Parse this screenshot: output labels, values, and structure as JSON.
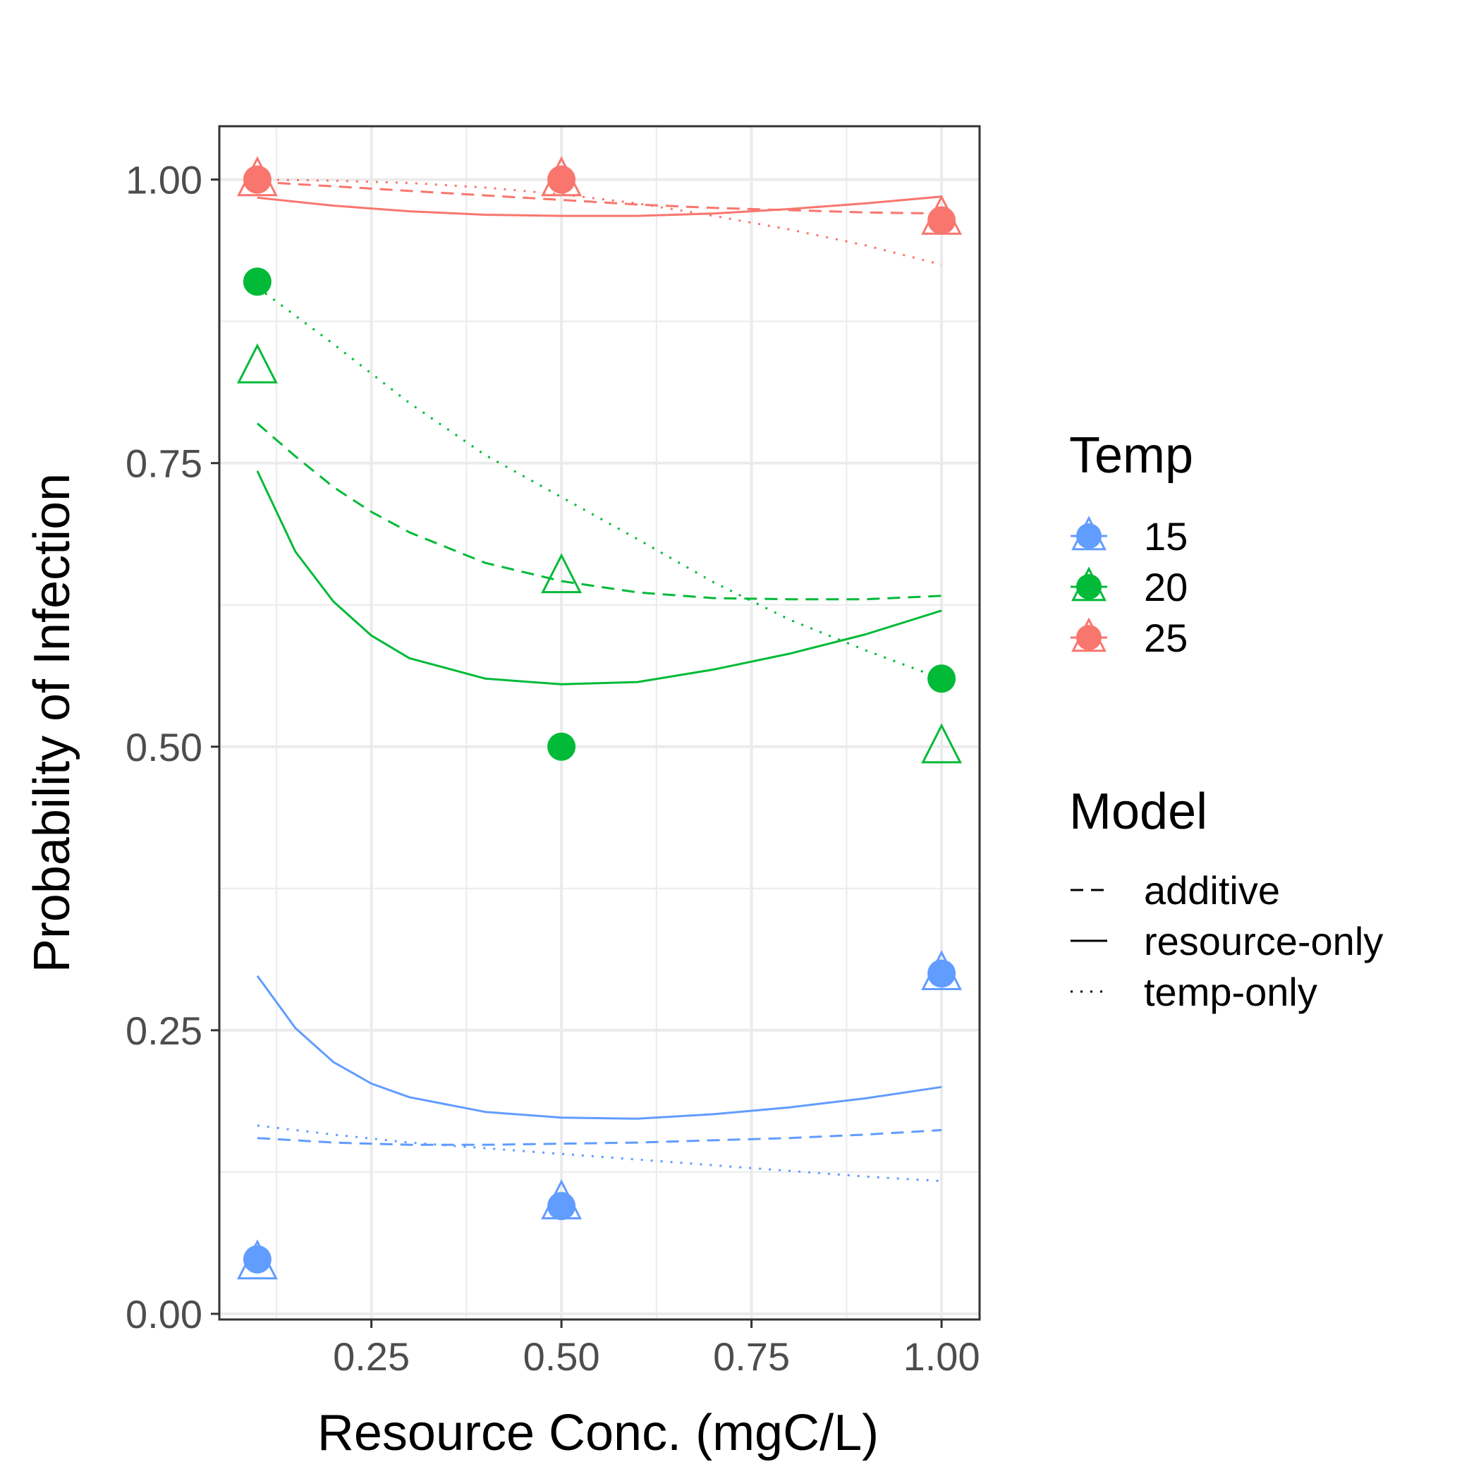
{
  "chart_data": {
    "type": "line",
    "title": "",
    "xlabel": "Resource Conc. (mgC/L)",
    "ylabel": "Probability of Infection",
    "xlim": [
      0.05,
      1.05
    ],
    "ylim": [
      -0.005,
      1.047
    ],
    "x_ticks": [
      0.25,
      0.5,
      0.75,
      1.0
    ],
    "x_tick_labels": [
      "0.25",
      "0.50",
      "0.75",
      "1.00"
    ],
    "y_ticks": [
      0.0,
      0.25,
      0.5,
      0.75,
      1.0
    ],
    "y_tick_labels": [
      "0.00",
      "0.25",
      "0.50",
      "0.75",
      "1.00"
    ],
    "grid": true,
    "legend_placement": "right",
    "temp_legend": {
      "title": "Temp",
      "items": [
        {
          "label": "15",
          "color": "#619CFF"
        },
        {
          "label": "20",
          "color": "#00BA38"
        },
        {
          "label": "25",
          "color": "#F8766D"
        }
      ]
    },
    "model_legend": {
      "title": "Model",
      "items": [
        {
          "label": "additive",
          "dash": "dashed"
        },
        {
          "label": "resource-only",
          "dash": "solid"
        },
        {
          "label": "temp-only",
          "dash": "dotted"
        }
      ]
    },
    "points_observed": [
      {
        "temp": "15",
        "color": "#619CFF",
        "x": [
          0.1,
          0.5,
          1.0
        ],
        "y": [
          0.048,
          0.095,
          0.3
        ]
      },
      {
        "temp": "20",
        "color": "#00BA38",
        "x": [
          0.1,
          0.5,
          1.0
        ],
        "y": [
          0.91,
          0.5,
          0.56
        ]
      },
      {
        "temp": "25",
        "color": "#F8766D",
        "x": [
          0.1,
          0.5,
          1.0
        ],
        "y": [
          1.0,
          1.0,
          0.964
        ]
      }
    ],
    "points_triangle": [
      {
        "temp": "15",
        "color": "#619CFF",
        "x": [
          0.1,
          0.5,
          1.0
        ],
        "y": [
          0.045,
          0.098,
          0.3
        ]
      },
      {
        "temp": "20",
        "color": "#00BA38",
        "x": [
          0.1,
          0.5,
          1.0
        ],
        "y": [
          0.835,
          0.65,
          0.5
        ]
      },
      {
        "temp": "25",
        "color": "#F8766D",
        "x": [
          0.1,
          0.5,
          1.0
        ],
        "y": [
          1.0,
          1.0,
          0.966
        ]
      }
    ],
    "series": [
      {
        "temp": "15",
        "model": "resource-only",
        "dash": "solid",
        "color": "#619CFF",
        "x": [
          0.1,
          0.15,
          0.2,
          0.25,
          0.3,
          0.4,
          0.5,
          0.6,
          0.7,
          0.8,
          0.9,
          1.0
        ],
        "y": [
          0.298,
          0.252,
          0.222,
          0.203,
          0.191,
          0.178,
          0.173,
          0.172,
          0.176,
          0.182,
          0.19,
          0.2
        ]
      },
      {
        "temp": "15",
        "model": "additive",
        "dash": "dashed",
        "color": "#619CFF",
        "x": [
          0.1,
          0.2,
          0.3,
          0.4,
          0.5,
          0.6,
          0.7,
          0.8,
          0.9,
          1.0
        ],
        "y": [
          0.155,
          0.151,
          0.149,
          0.149,
          0.15,
          0.151,
          0.153,
          0.155,
          0.158,
          0.162
        ]
      },
      {
        "temp": "15",
        "model": "temp-only",
        "dash": "dotted",
        "color": "#619CFF",
        "x": [
          0.1,
          0.2,
          0.3,
          0.4,
          0.5,
          0.6,
          0.7,
          0.8,
          0.9,
          1.0
        ],
        "y": [
          0.166,
          0.158,
          0.151,
          0.146,
          0.141,
          0.136,
          0.131,
          0.126,
          0.121,
          0.117
        ]
      },
      {
        "temp": "20",
        "model": "resource-only",
        "dash": "solid",
        "color": "#00BA38",
        "x": [
          0.1,
          0.15,
          0.2,
          0.25,
          0.3,
          0.4,
          0.5,
          0.6,
          0.7,
          0.8,
          0.9,
          1.0
        ],
        "y": [
          0.743,
          0.672,
          0.628,
          0.598,
          0.578,
          0.56,
          0.555,
          0.557,
          0.568,
          0.582,
          0.599,
          0.62
        ]
      },
      {
        "temp": "20",
        "model": "additive",
        "dash": "dashed",
        "color": "#00BA38",
        "x": [
          0.1,
          0.15,
          0.2,
          0.25,
          0.3,
          0.4,
          0.5,
          0.6,
          0.7,
          0.8,
          0.9,
          1.0
        ],
        "y": [
          0.785,
          0.756,
          0.729,
          0.707,
          0.689,
          0.662,
          0.646,
          0.636,
          0.631,
          0.63,
          0.63,
          0.633
        ]
      },
      {
        "temp": "20",
        "model": "temp-only",
        "dash": "dotted",
        "color": "#00BA38",
        "x": [
          0.1,
          0.2,
          0.3,
          0.4,
          0.5,
          0.6,
          0.7,
          0.8,
          0.9,
          1.0
        ],
        "y": [
          0.905,
          0.855,
          0.803,
          0.757,
          0.72,
          0.683,
          0.645,
          0.612,
          0.585,
          0.56
        ]
      },
      {
        "temp": "25",
        "model": "resource-only",
        "dash": "solid",
        "color": "#F8766D",
        "x": [
          0.1,
          0.2,
          0.3,
          0.4,
          0.5,
          0.6,
          0.7,
          0.8,
          0.9,
          1.0
        ],
        "y": [
          0.984,
          0.977,
          0.972,
          0.969,
          0.968,
          0.968,
          0.97,
          0.974,
          0.979,
          0.985
        ]
      },
      {
        "temp": "25",
        "model": "additive",
        "dash": "dashed",
        "color": "#F8766D",
        "x": [
          0.1,
          0.2,
          0.3,
          0.4,
          0.5,
          0.6,
          0.7,
          0.8,
          0.9,
          1.0
        ],
        "y": [
          0.998,
          0.994,
          0.99,
          0.986,
          0.982,
          0.978,
          0.975,
          0.973,
          0.971,
          0.97
        ]
      },
      {
        "temp": "25",
        "model": "temp-only",
        "dash": "dotted",
        "color": "#F8766D",
        "x": [
          0.1,
          0.2,
          0.3,
          0.4,
          0.5,
          0.6,
          0.7,
          0.8,
          0.9,
          1.0
        ],
        "y": [
          1.0,
          0.999,
          0.997,
          0.993,
          0.987,
          0.979,
          0.968,
          0.956,
          0.942,
          0.925
        ]
      }
    ]
  }
}
